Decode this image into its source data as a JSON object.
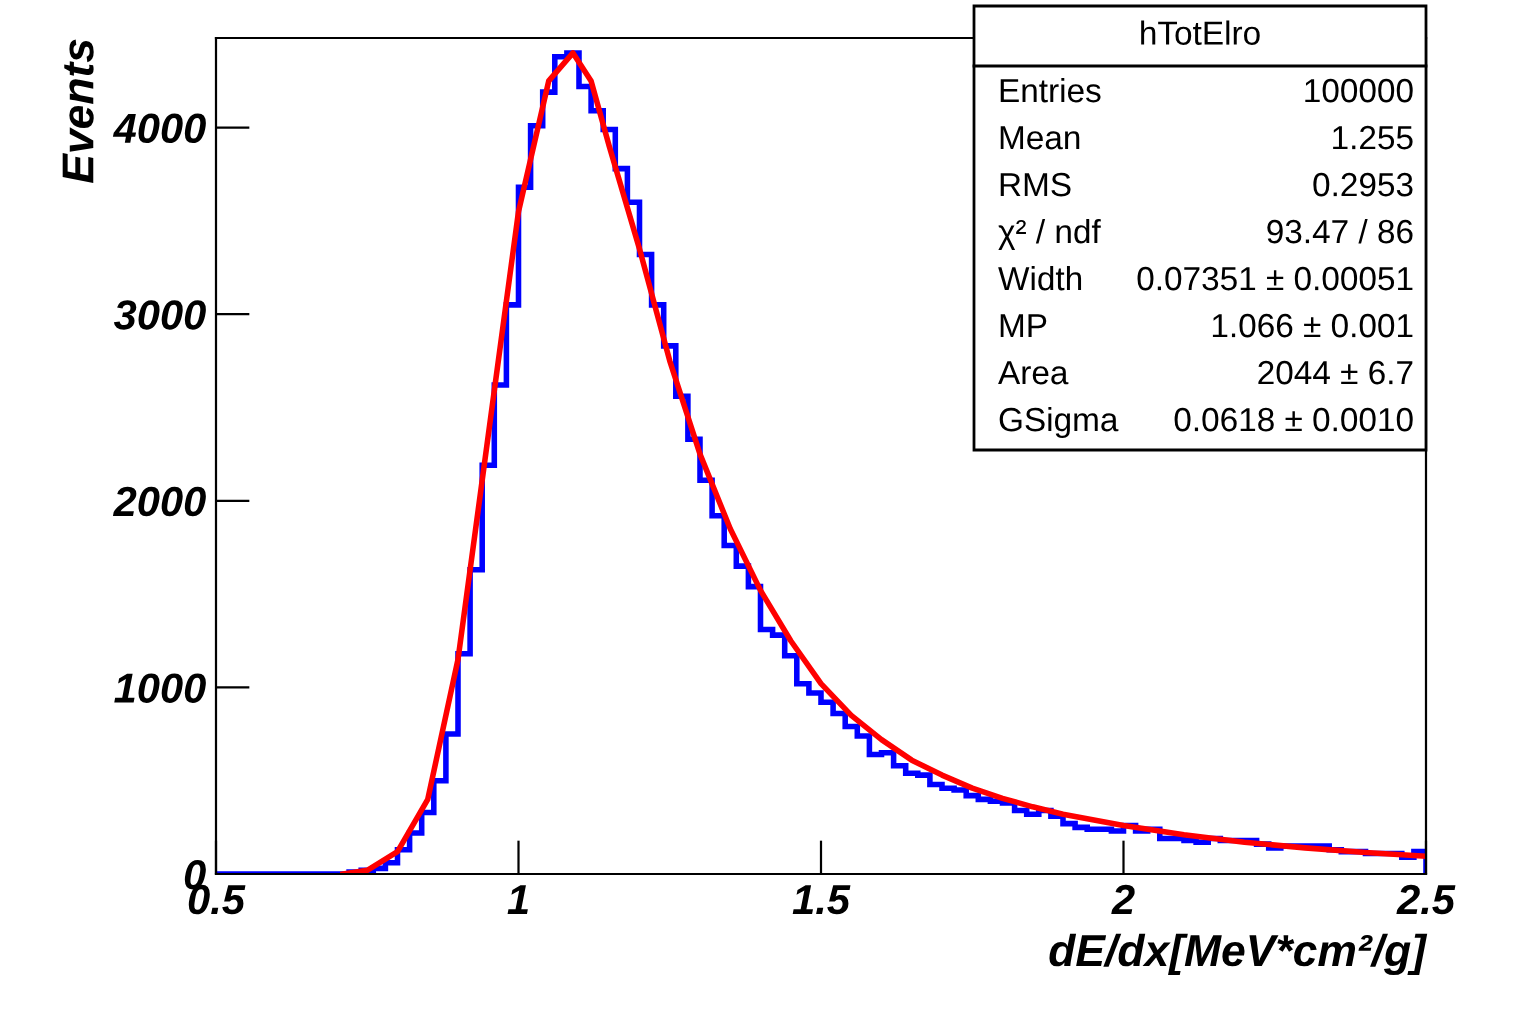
{
  "chart_data": {
    "type": "histogram",
    "xlabel": "dE/dx[MeV*cm²/g]",
    "ylabel": "Events",
    "bins": [
      0.5,
      0.52,
      0.54,
      0.56,
      0.58,
      0.6,
      0.62,
      0.64,
      0.66,
      0.68,
      0.7,
      0.72,
      0.74,
      0.76,
      0.78,
      0.8,
      0.82,
      0.84,
      0.86,
      0.88,
      0.9,
      0.92,
      0.94,
      0.96,
      0.98,
      1.0,
      1.02,
      1.04,
      1.06,
      1.08,
      1.1,
      1.12,
      1.14,
      1.16,
      1.18,
      1.2,
      1.22,
      1.24,
      1.26,
      1.28,
      1.3,
      1.32,
      1.34,
      1.36,
      1.38,
      1.4,
      1.42,
      1.44,
      1.46,
      1.48,
      1.5,
      1.52,
      1.54,
      1.56,
      1.58,
      1.6,
      1.62,
      1.64,
      1.66,
      1.68,
      1.7,
      1.72,
      1.74,
      1.76,
      1.78,
      1.8,
      1.82,
      1.84,
      1.86,
      1.88,
      1.9,
      1.92,
      1.94,
      1.96,
      1.98,
      2.0,
      2.02,
      2.04,
      2.06,
      2.08,
      2.1,
      2.12,
      2.14,
      2.16,
      2.18,
      2.2,
      2.22,
      2.24,
      2.26,
      2.28,
      2.3,
      2.32,
      2.34,
      2.36,
      2.38,
      2.4,
      2.42,
      2.44,
      2.46,
      2.48,
      2.5
    ],
    "series": [
      {
        "color": "#0000ff",
        "values": [
          0,
          0,
          0,
          0,
          0,
          0,
          0,
          0,
          0,
          0,
          0,
          10,
          20,
          30,
          60,
          130,
          220,
          330,
          500,
          750,
          1180,
          1630,
          2190,
          2620,
          3050,
          3680,
          4010,
          4190,
          4380,
          4400,
          4220,
          4090,
          3990,
          3780,
          3600,
          3320,
          3050,
          2830,
          2560,
          2330,
          2110,
          1920,
          1760,
          1650,
          1540,
          1310,
          1280,
          1170,
          1020,
          970,
          920,
          860,
          790,
          740,
          640,
          650,
          580,
          540,
          530,
          480,
          460,
          450,
          420,
          400,
          390,
          380,
          340,
          320,
          340,
          310,
          270,
          250,
          240,
          240,
          230,
          260,
          230,
          240,
          190,
          190,
          180,
          170,
          190,
          180,
          180,
          180,
          160,
          140,
          150,
          150,
          150,
          150,
          130,
          120,
          120,
          110,
          110,
          110,
          90,
          120
        ]
      },
      {
        "type": "line",
        "color": "#ff0000",
        "x": [
          0.71,
          0.75,
          0.8,
          0.85,
          0.9,
          0.95,
          1.0,
          1.05,
          1.09,
          1.12,
          1.15,
          1.2,
          1.25,
          1.3,
          1.35,
          1.4,
          1.45,
          1.5,
          1.55,
          1.6,
          1.65,
          1.7,
          1.75,
          1.8,
          1.85,
          1.9,
          2.0,
          2.1,
          2.2,
          2.3,
          2.4,
          2.5
        ],
        "values": [
          0,
          20,
          120,
          400,
          1150,
          2350,
          3550,
          4250,
          4400,
          4250,
          3900,
          3350,
          2750,
          2250,
          1850,
          1520,
          1250,
          1020,
          850,
          720,
          610,
          530,
          460,
          405,
          360,
          320,
          260,
          210,
          170,
          140,
          115,
          95
        ]
      }
    ],
    "xlim": [
      0.5,
      2.5
    ],
    "xticks": [
      0.5,
      1,
      1.5,
      2,
      2.5
    ],
    "ylim": [
      0,
      4480
    ],
    "yticks": [
      0,
      1000,
      2000,
      3000,
      4000
    ],
    "annotations": [
      "hTotElro",
      "Entries",
      "100000",
      "Mean",
      "1.255",
      "RMS",
      "0.2953",
      "χ² / ndf",
      "93.47 / 86",
      "Width",
      "0.07351 ± 0.00051",
      "MP",
      "1.066 ± 0.001",
      "Area",
      "2044 ± 6.7",
      "GSigma",
      "0.0618 ± 0.0010"
    ]
  }
}
